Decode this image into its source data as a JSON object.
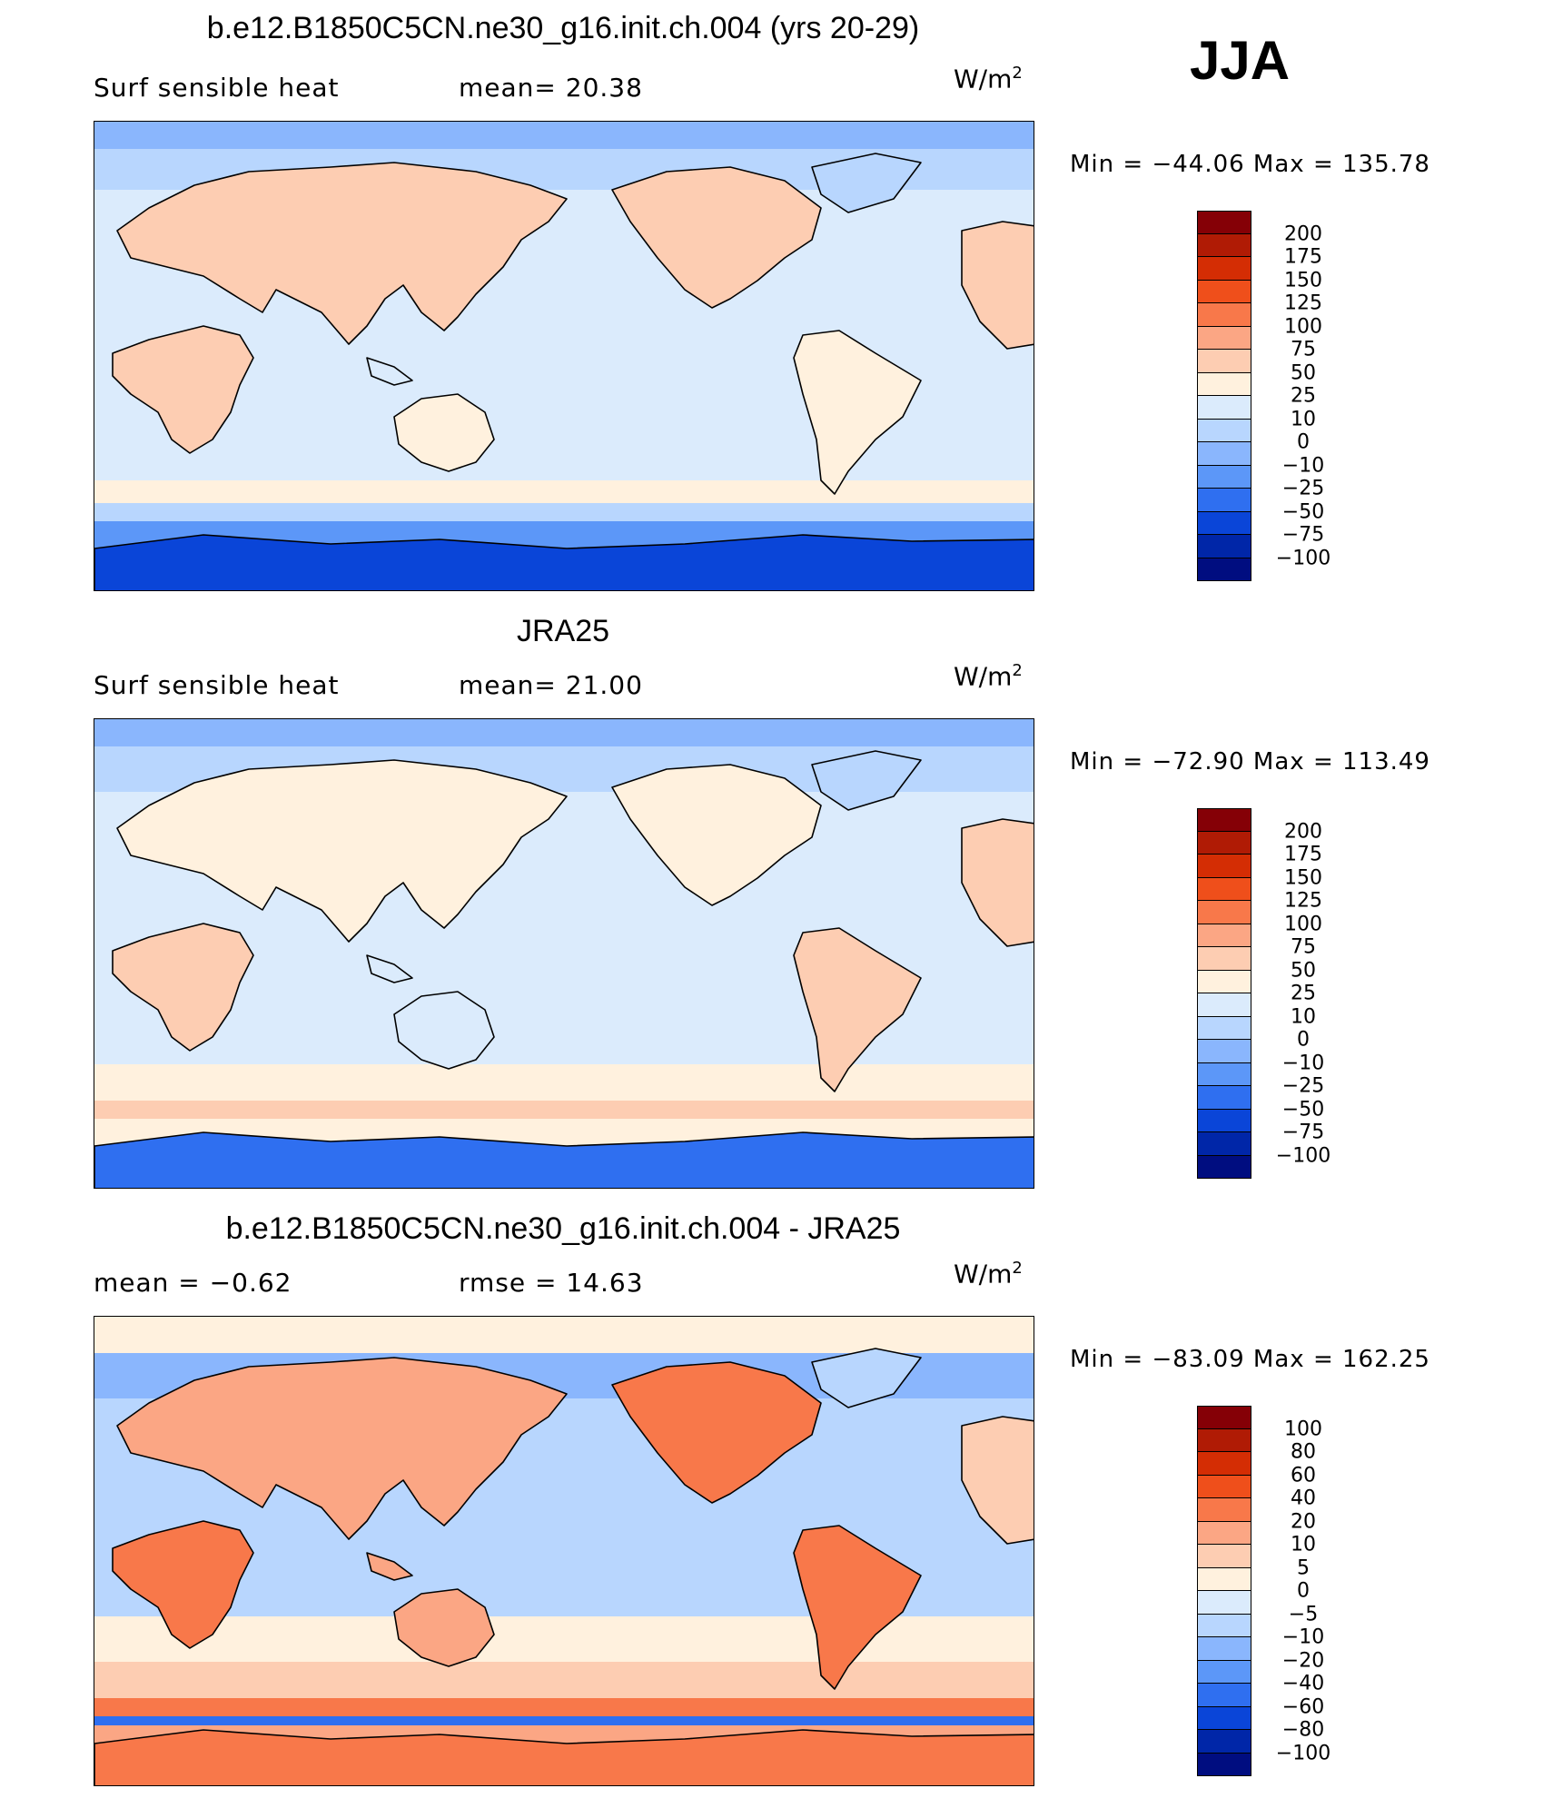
{
  "season": "JJA",
  "panels": [
    {
      "title": "b.e12.B1850C5CN.ne30_g16.init.ch.004 (yrs 20-29)",
      "left_label": "Surf  sensible  heat",
      "mid_label": "mean=   20.38",
      "units": "W/m",
      "units_exp": "2",
      "min_max": "Min  =  −44.06  Max  =  135.78",
      "levels": [
        "200",
        "175",
        "150",
        "125",
        "100",
        "75",
        "50",
        "25",
        "10",
        "0",
        "−10",
        "−25",
        "−50",
        "−75",
        "−100"
      ],
      "colors": [
        "#850006",
        "#b01b05",
        "#d42d04",
        "#ef4f1b",
        "#f8784a",
        "#fba684",
        "#fdcdb2",
        "#fff1de",
        "#dbebfc",
        "#b8d6fe",
        "#8ab6fd",
        "#5c97f8",
        "#2f6ff0",
        "#0a45d8",
        "#0026a8",
        "#000d80"
      ]
    },
    {
      "title": "JRA25",
      "left_label": "Surf  sensible  heat",
      "mid_label": "mean=   21.00",
      "units": "W/m",
      "units_exp": "2",
      "min_max": "Min  =  −72.90  Max  =  113.49",
      "levels": [
        "200",
        "175",
        "150",
        "125",
        "100",
        "75",
        "50",
        "25",
        "10",
        "0",
        "−10",
        "−25",
        "−50",
        "−75",
        "−100"
      ],
      "colors": [
        "#850006",
        "#b01b05",
        "#d42d04",
        "#ef4f1b",
        "#f8784a",
        "#fba684",
        "#fdcdb2",
        "#fff1de",
        "#dbebfc",
        "#b8d6fe",
        "#8ab6fd",
        "#5c97f8",
        "#2f6ff0",
        "#0a45d8",
        "#0026a8",
        "#000d80"
      ]
    },
    {
      "title": "b.e12.B1850C5CN.ne30_g16.init.ch.004 - JRA25",
      "left_label": "mean  =    −0.62",
      "mid_label": "rmse  =    14.63",
      "units": "W/m",
      "units_exp": "2",
      "min_max": "Min  =  −83.09  Max  =  162.25",
      "levels": [
        "100",
        "80",
        "60",
        "40",
        "20",
        "10",
        "5",
        "0",
        "−5",
        "−10",
        "−20",
        "−40",
        "−60",
        "−80",
        "−100"
      ],
      "colors": [
        "#850006",
        "#b01b05",
        "#d42d04",
        "#ef4f1b",
        "#f8784a",
        "#fba684",
        "#fdcdb2",
        "#fff1de",
        "#dbebfc",
        "#b8d6fe",
        "#8ab6fd",
        "#5c97f8",
        "#2f6ff0",
        "#0a45d8",
        "#0026a8",
        "#000d80"
      ]
    }
  ]
}
